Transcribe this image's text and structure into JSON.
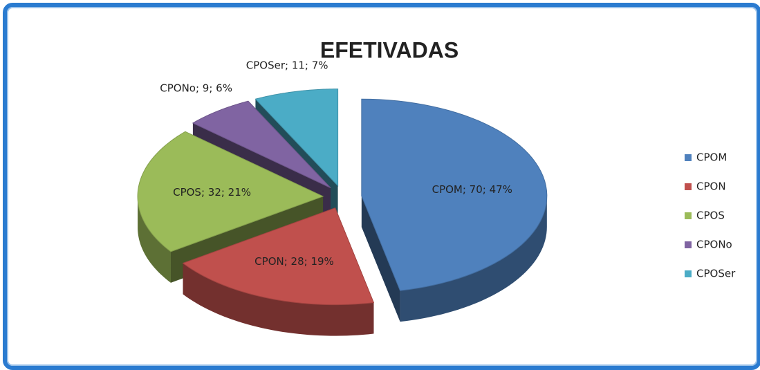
{
  "chart_data": {
    "type": "pie",
    "title": "EFETIVADAS",
    "categories": [
      "CPOM",
      "CPON",
      "CPOS",
      "CPONo",
      "CPOSer"
    ],
    "values": [
      70,
      28,
      32,
      9,
      11
    ],
    "value_labels": [
      "CPOM; 70; 47%",
      "CPON; 28; 19%",
      "CPOS; 32; 21%",
      "CPONo; 9; 6%",
      "CPOSer; 11; 7%"
    ],
    "colors": [
      "#4f81bd",
      "#c0504d",
      "#9bbb59",
      "#8064a2",
      "#4bacc6"
    ],
    "legend": "right"
  }
}
